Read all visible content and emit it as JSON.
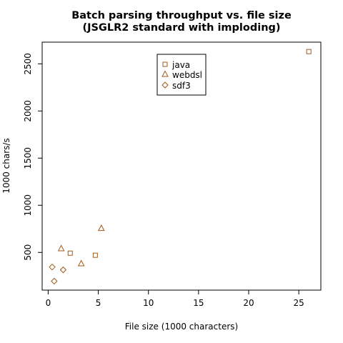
{
  "chart_data": {
    "type": "scatter",
    "title_lines": [
      "Batch parsing throughput vs. file size",
      "(JSGLR2 standard with imploding)"
    ],
    "xlabel": "File size (1000 characters)",
    "ylabel": "1000 chars/s",
    "xlim": [
      -0.6,
      27.2
    ],
    "ylim": [
      100,
      2730
    ],
    "xticks": [
      0,
      5,
      10,
      15,
      20,
      25
    ],
    "yticks": [
      500,
      1000,
      1500,
      2000,
      2500
    ],
    "legend_position": "top-center",
    "marker_color": "#a0591a",
    "series": [
      {
        "name": "java",
        "marker": "square",
        "points": [
          [
            2.2,
            492
          ],
          [
            4.7,
            470
          ],
          [
            26.0,
            2630
          ]
        ]
      },
      {
        "name": "webdsl",
        "marker": "triangle",
        "points": [
          [
            1.3,
            540
          ],
          [
            3.3,
            380
          ],
          [
            5.3,
            755
          ]
        ]
      },
      {
        "name": "sdf3",
        "marker": "diamond",
        "points": [
          [
            0.4,
            345
          ],
          [
            0.6,
            195
          ],
          [
            1.5,
            315
          ]
        ]
      }
    ]
  }
}
